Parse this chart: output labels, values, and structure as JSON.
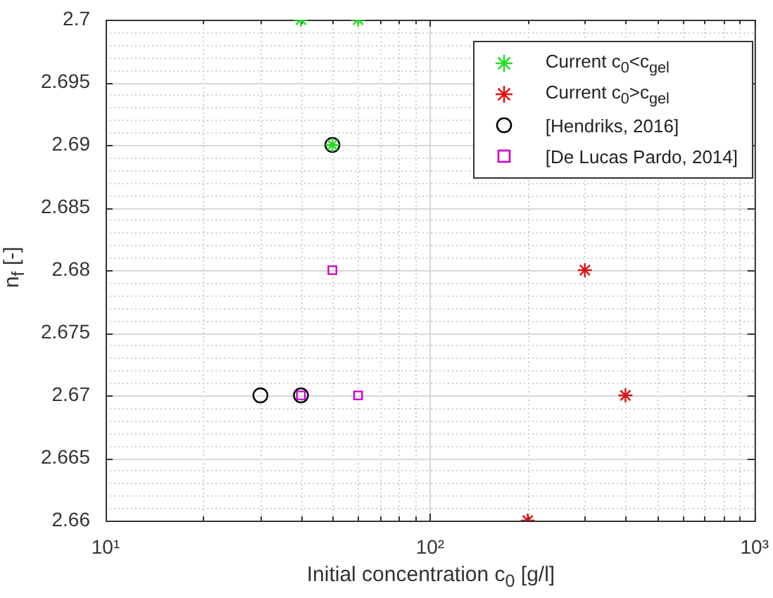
{
  "chart_data": {
    "type": "scatter",
    "xlabel": "Initial concentration c$_{0}$ [g/l]",
    "ylabel": "n$_{f}$ [-]",
    "log": "x",
    "grid": true,
    "legend": "top right",
    "xlim": [
      10,
      1000
    ],
    "xticks": [
      {
        "value": 10,
        "label": "10¹"
      },
      {
        "value": 20,
        "label": null
      },
      {
        "value": 30,
        "label": null
      },
      {
        "value": 40,
        "label": null
      },
      {
        "value": 50,
        "label": null
      },
      {
        "value": 60,
        "label": null
      },
      {
        "value": 70,
        "label": null
      },
      {
        "value": 80,
        "label": null
      },
      {
        "value": 90,
        "label": null
      },
      {
        "value": 100,
        "label": "10²"
      },
      {
        "value": 200,
        "label": null
      },
      {
        "value": 300,
        "label": null
      },
      {
        "value": 400,
        "label": null
      },
      {
        "value": 500,
        "label": null
      },
      {
        "value": 600,
        "label": null
      },
      {
        "value": 700,
        "label": null
      },
      {
        "value": 800,
        "label": null
      },
      {
        "value": 900,
        "label": null
      },
      {
        "value": 1000,
        "label": "10³"
      }
    ],
    "ylim": [
      2.66,
      2.7
    ],
    "yticks": [
      2.66,
      {
        "value": 2.661,
        "label": null
      },
      {
        "value": 2.662,
        "label": null
      },
      {
        "value": 2.663,
        "label": null
      },
      {
        "value": 2.664,
        "label": null
      },
      2.665,
      {
        "value": 2.666,
        "label": null
      },
      {
        "value": 2.667,
        "label": null
      },
      {
        "value": 2.668,
        "label": null
      },
      {
        "value": 2.669,
        "label": null
      },
      2.67,
      {
        "value": 2.671,
        "label": null
      },
      {
        "value": 2.672,
        "label": null
      },
      {
        "value": 2.673,
        "label": null
      },
      {
        "value": 2.674,
        "label": null
      },
      2.675,
      {
        "value": 2.676,
        "label": null
      },
      {
        "value": 2.677,
        "label": null
      },
      {
        "value": 2.678,
        "label": null
      },
      {
        "value": 2.679,
        "label": null
      },
      2.68,
      {
        "value": 2.681,
        "label": null
      },
      {
        "value": 2.682,
        "label": null
      },
      {
        "value": 2.683,
        "label": null
      },
      {
        "value": 2.684,
        "label": null
      },
      2.685,
      {
        "value": 2.686,
        "label": null
      },
      {
        "value": 2.687,
        "label": null
      },
      {
        "value": 2.688,
        "label": null
      },
      {
        "value": 2.689,
        "label": null
      },
      2.69,
      {
        "value": 2.691,
        "label": null
      },
      {
        "value": 2.692,
        "label": null
      },
      {
        "value": 2.693,
        "label": null
      },
      {
        "value": 2.694,
        "label": null
      },
      2.695,
      {
        "value": 2.696,
        "label": null
      },
      {
        "value": 2.697,
        "label": null
      },
      {
        "value": 2.698,
        "label": null
      },
      {
        "value": 2.699,
        "label": null
      },
      2.7
    ],
    "series": [
      {
        "name": "Current c$_{0}$<c$_{gel}$",
        "color": "#22dd22",
        "marker": "cross",
        "x": [
          40,
          60,
          50
        ],
        "values": [
          2.7,
          2.7,
          2.69
        ]
      },
      {
        "name": "Current c$_{0}$>c$_{gel}$",
        "color": "#dd1111",
        "marker": "cross",
        "x": [
          300,
          400,
          200
        ],
        "values": [
          2.68,
          2.67,
          2.66
        ]
      },
      {
        "name": "[Hendriks, 2016]",
        "color": "#000000",
        "marker": "circle",
        "x": [
          50,
          30,
          40
        ],
        "values": [
          2.69,
          2.67,
          2.67
        ]
      },
      {
        "name": "[De Lucas Pardo, 2014]",
        "color": "#cc00cc",
        "marker": "square",
        "x": [
          50,
          40,
          60
        ],
        "values": [
          2.68,
          2.67,
          2.67
        ]
      }
    ]
  }
}
